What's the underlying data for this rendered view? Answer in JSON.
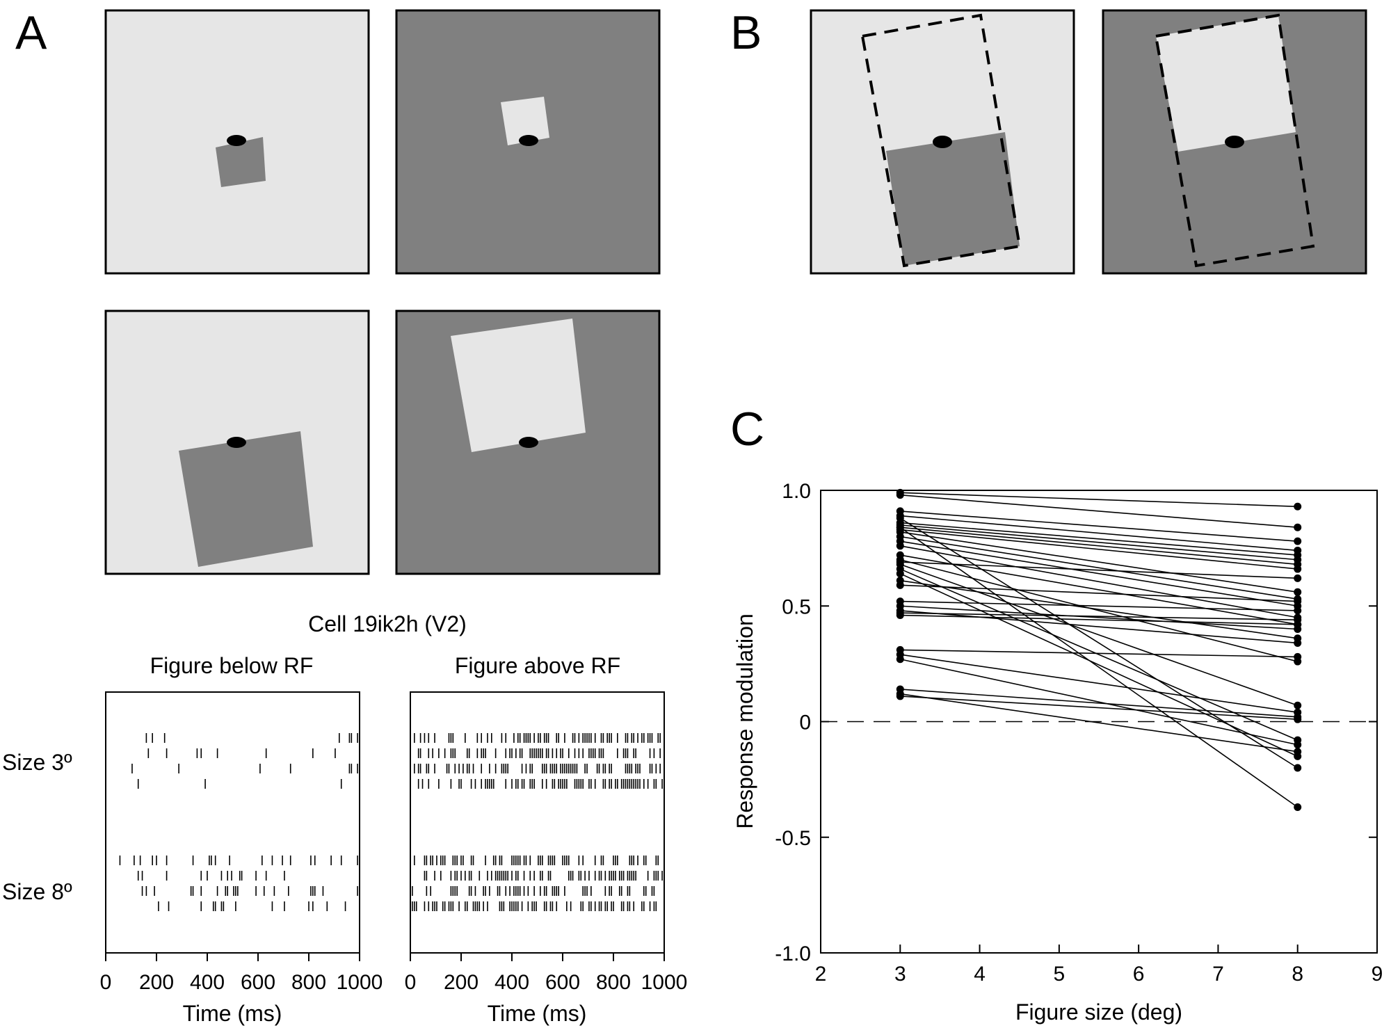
{
  "panel_labels": {
    "a": "A",
    "b": "B",
    "c": "C"
  },
  "colors": {
    "light_gray": "#e6e6e6",
    "dark_gray": "#808080",
    "black": "#000000",
    "white": "#ffffff"
  },
  "raster": {
    "cell_title": "Cell 19ik2h (V2)",
    "left_title": "Figure below RF",
    "right_title": "Figure above RF",
    "row_label_small": "Size 3º",
    "row_label_large": "Size 8º",
    "xlabel": "Time (ms)",
    "xticks": [
      "0",
      "200",
      "400",
      "600",
      "800",
      "1000"
    ]
  },
  "chart_data": {
    "type": "line",
    "xlabel": "Figure size (deg)",
    "ylabel": "Response modulation",
    "xlim": [
      2,
      9
    ],
    "ylim": [
      -1.0,
      1.0
    ],
    "xticks": [
      "2",
      "3",
      "4",
      "5",
      "6",
      "7",
      "8",
      "9"
    ],
    "yticks": [
      "1.0",
      "0.5",
      "0",
      "-0.5",
      "-1.0"
    ],
    "ytick_values": [
      1.0,
      0.5,
      0,
      -0.5,
      -1.0
    ],
    "reference_line_y": 0,
    "x": [
      3,
      8
    ],
    "series": [
      {
        "values": [
          0.99,
          0.93
        ]
      },
      {
        "values": [
          0.98,
          0.84
        ]
      },
      {
        "values": [
          0.91,
          0.78
        ]
      },
      {
        "values": [
          0.89,
          0.74
        ]
      },
      {
        "values": [
          0.86,
          0.72
        ]
      },
      {
        "values": [
          0.85,
          0.7
        ]
      },
      {
        "values": [
          0.84,
          0.68
        ]
      },
      {
        "values": [
          0.83,
          0.66
        ]
      },
      {
        "values": [
          0.82,
          0.56
        ]
      },
      {
        "values": [
          0.8,
          0.53
        ]
      },
      {
        "values": [
          0.78,
          0.5
        ]
      },
      {
        "values": [
          0.76,
          0.45
        ]
      },
      {
        "values": [
          0.72,
          0.42
        ]
      },
      {
        "values": [
          0.7,
          0.26
        ]
      },
      {
        "values": [
          0.68,
          0.07
        ]
      },
      {
        "values": [
          0.66,
          -0.08
        ]
      },
      {
        "values": [
          0.61,
          0.36
        ]
      },
      {
        "values": [
          0.59,
          0.52
        ]
      },
      {
        "values": [
          0.52,
          0.48
        ]
      },
      {
        "values": [
          0.5,
          0.4
        ]
      },
      {
        "values": [
          0.48,
          0.34
        ]
      },
      {
        "values": [
          0.47,
          0.44
        ]
      },
      {
        "values": [
          0.46,
          0.42
        ]
      },
      {
        "values": [
          0.31,
          0.28
        ]
      },
      {
        "values": [
          0.29,
          0.04
        ]
      },
      {
        "values": [
          0.27,
          -0.1
        ]
      },
      {
        "values": [
          0.14,
          0.02
        ]
      },
      {
        "values": [
          0.12,
          -0.13
        ]
      },
      {
        "values": [
          0.11,
          0.01
        ]
      },
      {
        "values": [
          0.88,
          -0.2
        ]
      },
      {
        "values": [
          0.84,
          -0.37
        ]
      },
      {
        "values": [
          0.64,
          -0.15
        ]
      },
      {
        "values": [
          0.69,
          0.62
        ]
      }
    ]
  }
}
